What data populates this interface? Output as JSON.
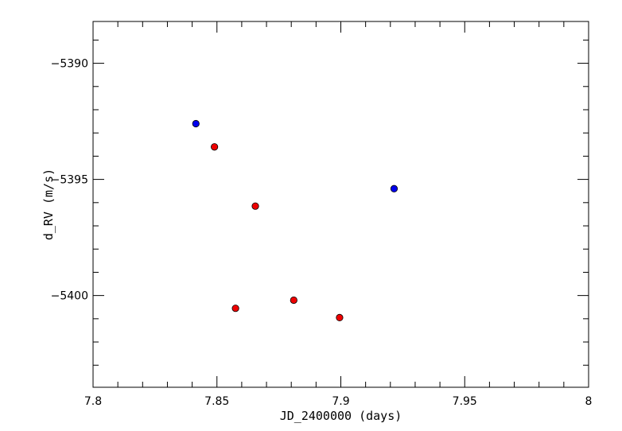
{
  "chart_data": {
    "type": "scatter",
    "title": "",
    "xlabel": "JD_2400000 (days)",
    "ylabel": "d_RV (m/s)",
    "xlim": [
      7.8,
      8.0
    ],
    "ylim": [
      -5403.95,
      -5388.2
    ],
    "x_major_ticks": [
      7.8,
      7.85,
      7.9,
      7.95,
      8.0
    ],
    "x_tick_labels": [
      "7.8",
      "7.85",
      "7.9",
      "7.95",
      "8"
    ],
    "x_minor_step": 0.01,
    "y_major_ticks": [
      -5390,
      -5395,
      -5400
    ],
    "y_tick_labels": [
      "-5390",
      "-5395",
      "-5400"
    ],
    "y_minor_step": 1,
    "grid": false,
    "series": [
      {
        "color": "#0000ee",
        "points": [
          {
            "x": 7.8415,
            "y": -5392.6
          },
          {
            "x": 7.9215,
            "y": -5395.4
          }
        ]
      },
      {
        "color": "#ee0000",
        "points": [
          {
            "x": 7.849,
            "y": -5393.6
          },
          {
            "x": 7.8655,
            "y": -5396.15
          },
          {
            "x": 7.8575,
            "y": -5400.55
          },
          {
            "x": 7.881,
            "y": -5400.2
          },
          {
            "x": 7.8995,
            "y": -5400.95
          }
        ]
      }
    ]
  }
}
